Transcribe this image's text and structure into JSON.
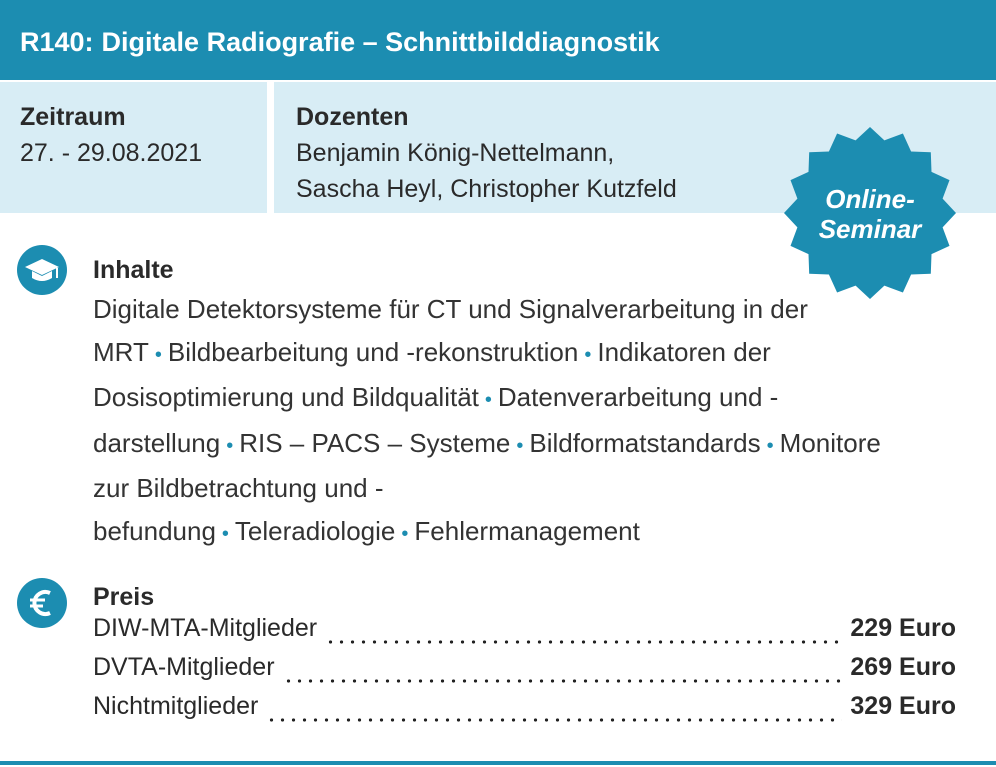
{
  "header": {
    "code": "R140:",
    "title": "Digitale Radiografie – Schnittbilddiagnostik"
  },
  "info": {
    "period": {
      "label": "Zeitraum",
      "value": "27. - 29.08.2021"
    },
    "lecturers": {
      "label": "Dozenten",
      "lines": [
        "Benjamin König-Nettelmann,",
        "Sascha Heyl, Christopher Kutzfeld"
      ]
    }
  },
  "badge": {
    "lines": [
      "Online-",
      "Seminar"
    ]
  },
  "contents": {
    "heading": "Inhalte",
    "items": [
      "Digitale Detektorsysteme für CT und Signalverarbeitung in der MRT",
      "Bildbearbeitung und -rekonstruktion",
      "Indikatoren der Dosisoptimierung und Bildqualität",
      "Datenverarbeitung und -darstellung",
      "RIS – PACS – Systeme",
      "Bildformatstandards",
      "Monitore zur Bildbetrachtung und -befundung",
      "Teleradiologie",
      "Fehlermanagement"
    ]
  },
  "price": {
    "heading": "Preis",
    "rows": [
      {
        "label": "DIW-MTA-Mitglieder",
        "price": "229 Euro"
      },
      {
        "label": "DVTA-Mitglieder",
        "price": "269 Euro"
      },
      {
        "label": "Nichtmitglieder",
        "price": "329 Euro"
      }
    ]
  }
}
